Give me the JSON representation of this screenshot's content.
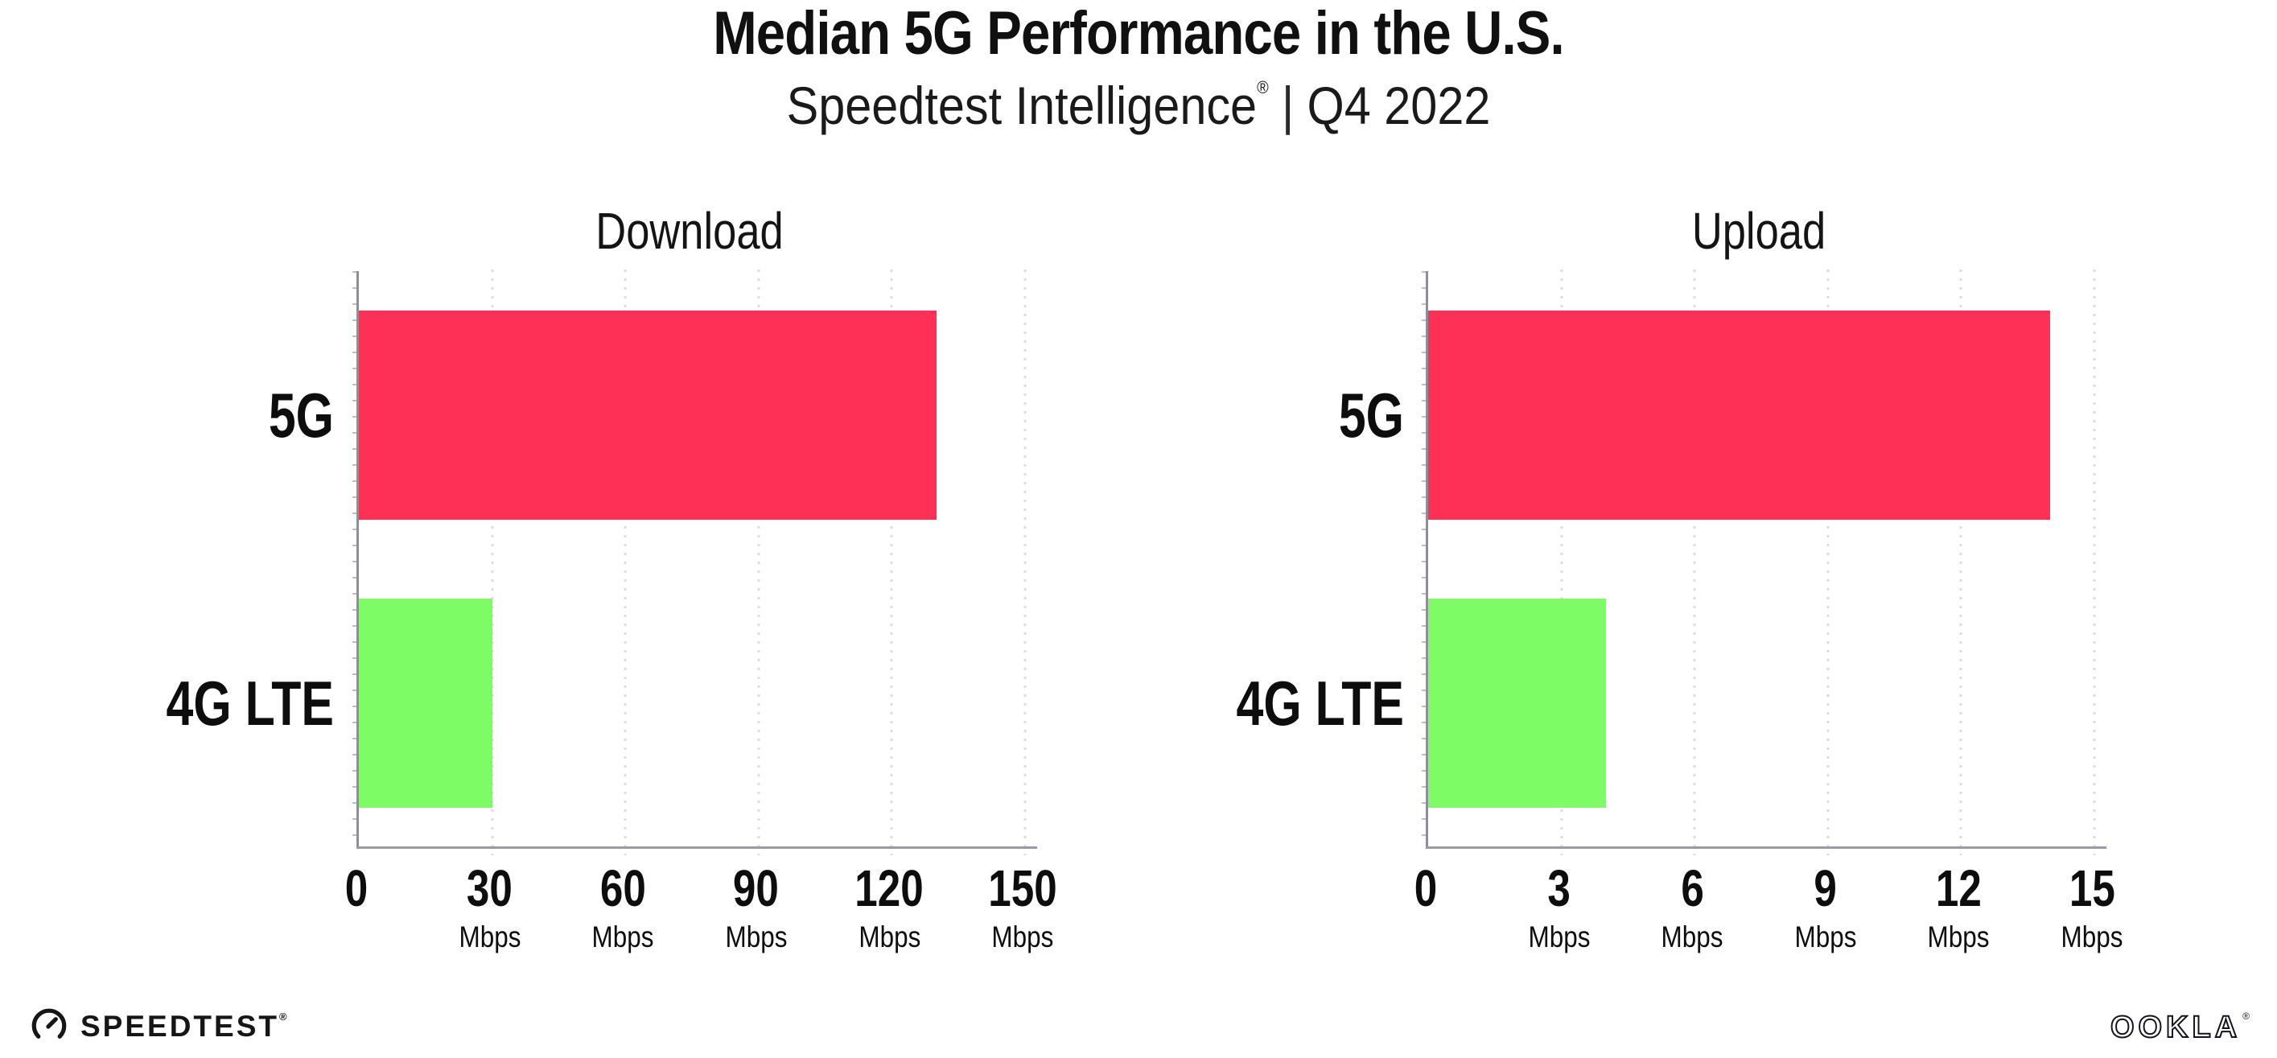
{
  "header": {
    "title": "Median 5G Performance in the U.S.",
    "subtitle_brand": "Speedtest Intelligence",
    "subtitle_reg": "®",
    "subtitle_separator": "|",
    "subtitle_period": "Q4 2022"
  },
  "chart_data": [
    {
      "type": "bar",
      "orientation": "horizontal",
      "title": "Download",
      "categories": [
        "5G",
        "4G LTE"
      ],
      "values": [
        130,
        30
      ],
      "unit": "Mbps",
      "xlim": [
        0,
        150
      ],
      "xticks": [
        0,
        30,
        60,
        90,
        120,
        150
      ],
      "grid": "vertical-dotted",
      "legend": "none",
      "bar_colors": [
        "#FF3056",
        "#7DFC66"
      ]
    },
    {
      "type": "bar",
      "orientation": "horizontal",
      "title": "Upload",
      "categories": [
        "5G",
        "4G LTE"
      ],
      "values": [
        14,
        4
      ],
      "unit": "Mbps",
      "xlim": [
        0,
        15
      ],
      "xticks": [
        0,
        3,
        6,
        9,
        12,
        15
      ],
      "grid": "vertical-dotted",
      "legend": "none",
      "bar_colors": [
        "#FF3056",
        "#7DFC66"
      ]
    }
  ],
  "colors": {
    "bar_5g": "#FF3056",
    "bar_4g_lte": "#7DFC66",
    "axis_y": "#8E8E98",
    "axis_x": "#9A9AA2",
    "gridline": "#DBDBE4",
    "text": "#101010"
  },
  "footer": {
    "speedtest_icon": "gauge-icon",
    "speedtest_label": "SPEEDTEST",
    "speedtest_reg": "®",
    "ookla_label": "OOKLA",
    "ookla_reg": "®"
  }
}
